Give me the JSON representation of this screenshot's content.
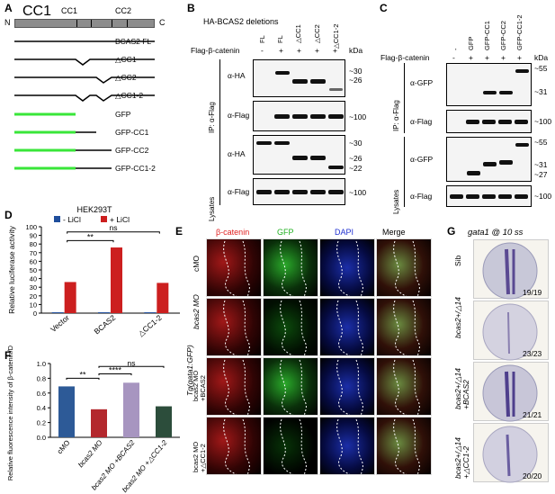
{
  "panel_letters": {
    "a": "A",
    "b": "B",
    "c": "C",
    "d": "D",
    "e": "E",
    "f": "F",
    "g": "G"
  },
  "panelA": {
    "schematic_n": "N",
    "schematic_c": "C",
    "cc1": "CC1",
    "cc2": "CC2",
    "constructs": [
      "BCAS2 FL",
      "△CC1",
      "△CC2",
      "△CC1-2",
      "GFP",
      "GFP-CC1",
      "GFP-CC2",
      "GFP-CC1-2"
    ],
    "gfp_color": "#39e639"
  },
  "panelB": {
    "header": "HA-BCAS2 deletions",
    "lane_labels": [
      "FL",
      "FL",
      "△CC1",
      "△CC2",
      "△CC1-2"
    ],
    "row_label": "Flag-β-catenin",
    "signs": [
      "-",
      "+",
      "+",
      "+",
      "+"
    ],
    "kda": "kDa",
    "ip": "IP: α-Flag",
    "lysates": "Lysates",
    "blots": [
      "α-HA",
      "α-Flag",
      "α-HA",
      "α-Flag"
    ],
    "markers": [
      "~30",
      "~26",
      "~100",
      "~30",
      "~26",
      "~22",
      "~100"
    ]
  },
  "panelC": {
    "lane_labels": [
      "-",
      "GFP",
      "GFP-CC1",
      "GFP-CC2",
      "GFP-CC1-2"
    ],
    "row_label": "Flag-β-catenin",
    "signs": [
      "-",
      "+",
      "+",
      "+",
      "+"
    ],
    "kda": "kDa",
    "ip": "IP: α-Flag",
    "lysates": "Lysates",
    "blots": [
      "α-GFP",
      "α-Flag",
      "α-GFP",
      "α-Flag"
    ],
    "markers": [
      "~55",
      "~31",
      "~100",
      "~55",
      "~31",
      "~27",
      "~100"
    ]
  },
  "panelD": {
    "title": "HEK293T",
    "legend": [
      "- LiCl",
      "+ LiCl"
    ],
    "ns": "ns",
    "sig": "**"
  },
  "panelE": {
    "columns": [
      "β-catenin",
      "GFP",
      "DAPI",
      "Merge"
    ],
    "column_colors": [
      "#e02020",
      "#20b020",
      "#2030d0",
      "#000000"
    ],
    "rows": [
      "cMO",
      "bcas2 MO",
      "bcas2 MO\n+BCAS2",
      "bcas2 MO\n+△CC1-2"
    ],
    "side_label": "Tg(gata1:GFP)"
  },
  "panelF": {
    "sig1": "**",
    "sig2": "****",
    "ns": "ns"
  },
  "panelG": {
    "title": "gata1 @ 10 ss",
    "rows": [
      "Sib",
      "bcas2+/△14",
      "bcas2+/△14\n+BCAS2",
      "bcas2+/△14\n+△CC1-2"
    ],
    "counts": [
      "19/19",
      "23/23",
      "21/21",
      "20/20"
    ]
  },
  "chart_data": [
    {
      "type": "bar",
      "title": "HEK293T",
      "categories": [
        "Vector",
        "BCAS2",
        "△CC1-2"
      ],
      "ylabel": "Relative luciferase activity",
      "ylim": [
        0,
        100
      ],
      "yticks": [
        0,
        10,
        20,
        30,
        40,
        50,
        60,
        70,
        80,
        90,
        100
      ],
      "series": [
        {
          "name": "- LiCl",
          "values": [
            1,
            1,
            1
          ],
          "color": "#1f4e9c"
        },
        {
          "name": "+ LiCl",
          "values": [
            36,
            76,
            35
          ],
          "color": "#cc1f1f"
        }
      ]
    },
    {
      "type": "bar",
      "categories": [
        "cMO",
        "bcas2 MO",
        "bcas2 MO +BCAS2",
        "bcas2 MO +△CC1-2"
      ],
      "ylabel": "Relative fluorescence intensity of β-catenin/DAPI",
      "ylim": [
        0,
        1.0
      ],
      "yticks": [
        0.0,
        0.2,
        0.4,
        0.6,
        0.8,
        1.0
      ],
      "values": [
        0.69,
        0.38,
        0.74,
        0.42
      ],
      "colors": [
        "#2d5a97",
        "#b3282d",
        "#a795c0",
        "#2c4d3b"
      ]
    }
  ]
}
